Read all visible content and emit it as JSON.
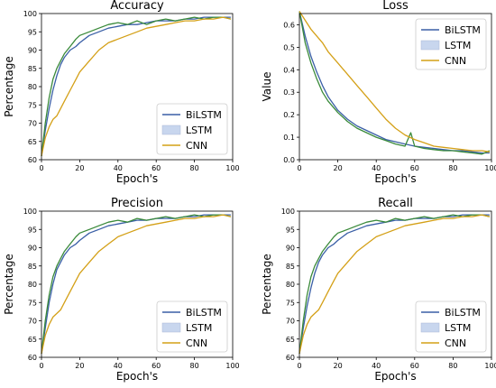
{
  "colors": {
    "BiLSTM": "#3a5fa6",
    "LSTM": "#3a8a3a",
    "CNN": "#d4a017",
    "LSTM_patch": "#c8d6ee"
  },
  "chart_data": [
    {
      "type": "line",
      "title": "Accuracy",
      "xlabel": "Epoch's",
      "ylabel": "Percentage",
      "xlim": [
        0,
        100
      ],
      "ylim": [
        60,
        100
      ],
      "xticks": [
        0,
        20,
        40,
        60,
        80,
        100
      ],
      "yticks": [
        60,
        65,
        70,
        75,
        80,
        85,
        90,
        95,
        100
      ],
      "legend": "bottom-right",
      "grid": false,
      "series": [
        {
          "name": "BiLSTM",
          "x": [
            0,
            2,
            4,
            6,
            8,
            10,
            12,
            15,
            18,
            20,
            25,
            30,
            35,
            40,
            45,
            50,
            55,
            60,
            65,
            70,
            75,
            80,
            85,
            90,
            95,
            99
          ],
          "values": [
            61,
            68,
            74,
            79,
            83,
            86,
            88,
            90,
            91,
            92,
            94,
            95,
            96,
            96.5,
            97,
            97,
            97.5,
            98,
            98,
            98,
            98.5,
            98.5,
            99,
            99,
            99,
            99
          ]
        },
        {
          "name": "LSTM",
          "x": [
            0,
            2,
            4,
            6,
            8,
            10,
            12,
            15,
            18,
            20,
            25,
            30,
            35,
            40,
            45,
            50,
            55,
            60,
            65,
            70,
            75,
            80,
            85,
            90,
            95,
            99
          ],
          "values": [
            61,
            70,
            77,
            82,
            85,
            87,
            89,
            91,
            93,
            94,
            95,
            96,
            97,
            97.5,
            97,
            98,
            97,
            98,
            98.5,
            98,
            98.5,
            99,
            98.5,
            99,
            99,
            98.5
          ]
        },
        {
          "name": "CNN",
          "x": [
            0,
            2,
            4,
            6,
            8,
            10,
            12,
            15,
            18,
            20,
            25,
            30,
            35,
            40,
            45,
            50,
            55,
            60,
            65,
            70,
            75,
            80,
            85,
            90,
            95,
            99
          ],
          "values": [
            61,
            66,
            69,
            71,
            72,
            74,
            76,
            79,
            82,
            84,
            87,
            90,
            92,
            93,
            94,
            95,
            96,
            96.5,
            97,
            97.5,
            98,
            98,
            98.5,
            98.5,
            99,
            98.5
          ]
        }
      ]
    },
    {
      "type": "line",
      "title": "Loss",
      "xlabel": "Epoch's",
      "ylabel": "Value",
      "xlim": [
        0,
        100
      ],
      "ylim": [
        0.0,
        0.65
      ],
      "xticks": [
        0,
        20,
        40,
        60,
        80,
        100
      ],
      "yticks": [
        0.0,
        0.1,
        0.2,
        0.3,
        0.4,
        0.5,
        0.6
      ],
      "legend": "top-right",
      "grid": false,
      "series": [
        {
          "name": "BiLSTM",
          "x": [
            0,
            3,
            6,
            9,
            12,
            15,
            20,
            25,
            30,
            35,
            40,
            45,
            50,
            55,
            60,
            65,
            70,
            75,
            80,
            85,
            90,
            95,
            99
          ],
          "values": [
            0.66,
            0.55,
            0.46,
            0.39,
            0.33,
            0.28,
            0.22,
            0.18,
            0.15,
            0.13,
            0.11,
            0.09,
            0.08,
            0.07,
            0.06,
            0.055,
            0.05,
            0.045,
            0.04,
            0.04,
            0.035,
            0.03,
            0.03
          ]
        },
        {
          "name": "LSTM",
          "x": [
            0,
            3,
            6,
            9,
            12,
            15,
            20,
            25,
            30,
            35,
            40,
            45,
            50,
            55,
            58,
            60,
            65,
            70,
            75,
            80,
            85,
            90,
            95,
            99
          ],
          "values": [
            0.66,
            0.52,
            0.43,
            0.36,
            0.3,
            0.26,
            0.21,
            0.17,
            0.14,
            0.12,
            0.1,
            0.085,
            0.07,
            0.06,
            0.12,
            0.06,
            0.05,
            0.045,
            0.04,
            0.04,
            0.035,
            0.03,
            0.025,
            0.04
          ]
        },
        {
          "name": "CNN",
          "x": [
            0,
            3,
            6,
            9,
            12,
            15,
            20,
            25,
            30,
            35,
            40,
            45,
            50,
            55,
            60,
            65,
            70,
            75,
            80,
            85,
            90,
            95,
            99
          ],
          "values": [
            0.66,
            0.62,
            0.58,
            0.55,
            0.52,
            0.48,
            0.43,
            0.38,
            0.33,
            0.28,
            0.23,
            0.18,
            0.14,
            0.11,
            0.09,
            0.075,
            0.06,
            0.055,
            0.05,
            0.045,
            0.04,
            0.04,
            0.035
          ]
        }
      ]
    },
    {
      "type": "line",
      "title": "Precision",
      "xlabel": "Epoch's",
      "ylabel": "Percentage",
      "xlim": [
        0,
        100
      ],
      "ylim": [
        60,
        100
      ],
      "xticks": [
        0,
        20,
        40,
        60,
        80,
        100
      ],
      "yticks": [
        60,
        65,
        70,
        75,
        80,
        85,
        90,
        95,
        100
      ],
      "legend": "bottom-right",
      "grid": false,
      "series": [
        {
          "name": "BiLSTM",
          "x": [
            0,
            2,
            4,
            6,
            8,
            10,
            12,
            15,
            18,
            20,
            25,
            30,
            35,
            40,
            45,
            50,
            55,
            60,
            65,
            70,
            75,
            80,
            85,
            90,
            95,
            99
          ],
          "values": [
            61,
            68,
            75,
            80,
            84,
            86,
            88,
            90,
            91,
            92,
            94,
            95,
            96,
            96.5,
            97,
            97.5,
            97.5,
            98,
            98,
            98,
            98.5,
            98.5,
            99,
            99,
            99,
            99
          ]
        },
        {
          "name": "LSTM",
          "x": [
            0,
            2,
            4,
            6,
            8,
            10,
            12,
            15,
            18,
            20,
            25,
            30,
            35,
            40,
            45,
            50,
            55,
            60,
            65,
            70,
            75,
            80,
            85,
            90,
            95,
            99
          ],
          "values": [
            61,
            70,
            77,
            82,
            85,
            87,
            89,
            91,
            93,
            94,
            95,
            96,
            97,
            97.5,
            97,
            98,
            97.5,
            98,
            98.5,
            98,
            98.5,
            99,
            98.5,
            99,
            99,
            98.5
          ]
        },
        {
          "name": "CNN",
          "x": [
            0,
            2,
            4,
            6,
            8,
            10,
            12,
            15,
            18,
            20,
            25,
            30,
            35,
            40,
            45,
            50,
            55,
            60,
            65,
            70,
            75,
            80,
            85,
            90,
            95,
            99
          ],
          "values": [
            61,
            66,
            69,
            71,
            72,
            73,
            75,
            78,
            81,
            83,
            86,
            89,
            91,
            93,
            94,
            95,
            96,
            96.5,
            97,
            97.5,
            98,
            98,
            98.5,
            98.5,
            99,
            98.5
          ]
        }
      ]
    },
    {
      "type": "line",
      "title": "Recall",
      "xlabel": "Epoch's",
      "ylabel": "Percentage",
      "xlim": [
        0,
        100
      ],
      "ylim": [
        60,
        100
      ],
      "xticks": [
        0,
        20,
        40,
        60,
        80,
        100
      ],
      "yticks": [
        60,
        65,
        70,
        75,
        80,
        85,
        90,
        95,
        100
      ],
      "legend": "bottom-right",
      "grid": false,
      "series": [
        {
          "name": "BiLSTM",
          "x": [
            0,
            2,
            4,
            6,
            8,
            10,
            12,
            15,
            18,
            20,
            25,
            30,
            35,
            40,
            45,
            50,
            55,
            60,
            65,
            70,
            75,
            80,
            85,
            90,
            95,
            99
          ],
          "values": [
            61,
            68,
            74,
            79,
            83,
            86,
            88,
            90,
            91,
            92,
            94,
            95,
            96,
            96.5,
            97,
            97.5,
            97.5,
            98,
            98,
            98,
            98.5,
            98.5,
            99,
            99,
            99,
            99
          ]
        },
        {
          "name": "LSTM",
          "x": [
            0,
            2,
            4,
            6,
            8,
            10,
            12,
            15,
            18,
            20,
            25,
            30,
            35,
            40,
            45,
            50,
            55,
            60,
            65,
            70,
            75,
            80,
            85,
            90,
            95,
            99
          ],
          "values": [
            61,
            70,
            77,
            82,
            85,
            87,
            89,
            91,
            93,
            94,
            95,
            96,
            97,
            97.5,
            97,
            98,
            97.5,
            98,
            98.5,
            98,
            98.5,
            99,
            98.5,
            99,
            99,
            98.5
          ]
        },
        {
          "name": "CNN",
          "x": [
            0,
            2,
            4,
            6,
            8,
            10,
            12,
            15,
            18,
            20,
            25,
            30,
            35,
            40,
            45,
            50,
            55,
            60,
            65,
            70,
            75,
            80,
            85,
            90,
            95,
            99
          ],
          "values": [
            61,
            66,
            69,
            71,
            72,
            73,
            75,
            78,
            81,
            83,
            86,
            89,
            91,
            93,
            94,
            95,
            96,
            96.5,
            97,
            97.5,
            98,
            98,
            98.5,
            98.5,
            99,
            98.5
          ]
        }
      ]
    }
  ]
}
